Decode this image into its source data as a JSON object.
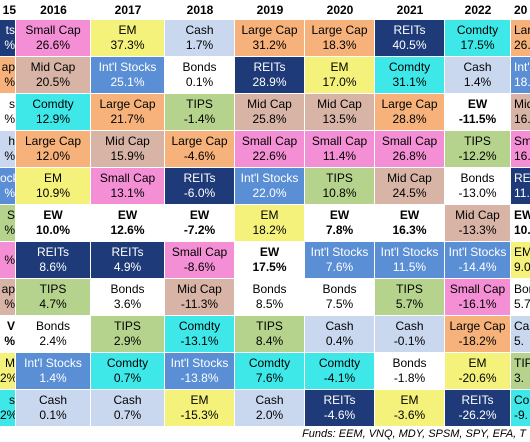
{
  "header": {
    "columns": [
      "15",
      "2016",
      "2017",
      "2018",
      "2019",
      "2020",
      "2021",
      "2022",
      "20"
    ]
  },
  "table": {
    "columns": [
      [
        {
          "label": "ts",
          "value": "%",
          "color": "#1f3a78"
        },
        {
          "label": "ap",
          "value": "%",
          "color": "#f6b27a"
        },
        {
          "label": "s",
          "value": "%",
          "color": "#ffffff"
        },
        {
          "label": "h",
          "value": "%",
          "color": "#c9d8ef"
        },
        {
          "label": "ocks",
          "value": "%",
          "color": "#5a8ed5"
        },
        {
          "label": "S",
          "value": "%",
          "color": "#b5d38c"
        },
        {
          "value": "%",
          "color": "#f48fd5"
        },
        {
          "label": "ap",
          "value": "%",
          "color": "#d8b4a6"
        },
        {
          "label": "V",
          "value": "%",
          "color": "#ffffff",
          "bold": true
        },
        {
          "label": "M",
          "value": "2%",
          "color": "#f5f27c"
        },
        {
          "label": "s",
          "value": "2%",
          "color": "#3ee8e8"
        }
      ],
      [
        {
          "label": "Small Cap",
          "value": "26.6%",
          "color": "#f48fd5"
        },
        {
          "label": "Mid Cap",
          "value": "20.5%",
          "color": "#d8b4a6"
        },
        {
          "label": "Comdty",
          "value": "12.9%",
          "color": "#3ee8e8"
        },
        {
          "label": "Large Cap",
          "value": "12.0%",
          "color": "#f6b27a"
        },
        {
          "label": "EM",
          "value": "10.9%",
          "color": "#f5f27c"
        },
        {
          "label": "EW",
          "value": "10.0%",
          "color": "#ffffff",
          "bold": true
        },
        {
          "label": "REITs",
          "value": "8.6%",
          "color": "#1f3a78"
        },
        {
          "label": "TIPS",
          "value": "4.7%",
          "color": "#b5d38c"
        },
        {
          "label": "Bonds",
          "value": "2.4%",
          "color": "#ffffff"
        },
        {
          "label": "Int'l Stocks",
          "value": "1.4%",
          "color": "#5a8ed5"
        },
        {
          "label": "Cash",
          "value": "0.1%",
          "color": "#c9d8ef"
        }
      ],
      [
        {
          "label": "EM",
          "value": "37.3%",
          "color": "#f5f27c"
        },
        {
          "label": "Int'l Stocks",
          "value": "25.1%",
          "color": "#5a8ed5"
        },
        {
          "label": "Large Cap",
          "value": "21.7%",
          "color": "#f6b27a"
        },
        {
          "label": "Mid Cap",
          "value": "15.9%",
          "color": "#d8b4a6"
        },
        {
          "label": "Small Cap",
          "value": "13.1%",
          "color": "#f48fd5"
        },
        {
          "label": "EW",
          "value": "12.6%",
          "color": "#ffffff",
          "bold": true
        },
        {
          "label": "REITs",
          "value": "4.9%",
          "color": "#1f3a78"
        },
        {
          "label": "Bonds",
          "value": "3.6%",
          "color": "#ffffff"
        },
        {
          "label": "TIPS",
          "value": "2.9%",
          "color": "#b5d38c"
        },
        {
          "label": "Comdty",
          "value": "0.7%",
          "color": "#3ee8e8"
        },
        {
          "label": "Cash",
          "value": "0.7%",
          "color": "#c9d8ef"
        }
      ],
      [
        {
          "label": "Cash",
          "value": "1.7%",
          "color": "#c9d8ef"
        },
        {
          "label": "Bonds",
          "value": "0.1%",
          "color": "#ffffff"
        },
        {
          "label": "TIPS",
          "value": "-1.4%",
          "color": "#b5d38c"
        },
        {
          "label": "Large Cap",
          "value": "-4.6%",
          "color": "#f6b27a"
        },
        {
          "label": "REITs",
          "value": "-6.0%",
          "color": "#1f3a78"
        },
        {
          "label": "EW",
          "value": "-7.2%",
          "color": "#ffffff",
          "bold": true
        },
        {
          "label": "Small Cap",
          "value": "-8.6%",
          "color": "#f48fd5"
        },
        {
          "label": "Mid Cap",
          "value": "-11.3%",
          "color": "#d8b4a6"
        },
        {
          "label": "Comdty",
          "value": "-13.1%",
          "color": "#3ee8e8"
        },
        {
          "label": "Int'l Stocks",
          "value": "-13.8%",
          "color": "#5a8ed5"
        },
        {
          "label": "EM",
          "value": "-15.3%",
          "color": "#f5f27c"
        }
      ],
      [
        {
          "label": "Large Cap",
          "value": "31.2%",
          "color": "#f6b27a"
        },
        {
          "label": "REITs",
          "value": "28.9%",
          "color": "#1f3a78"
        },
        {
          "label": "Mid Cap",
          "value": "25.8%",
          "color": "#d8b4a6"
        },
        {
          "label": "Small Cap",
          "value": "22.6%",
          "color": "#f48fd5"
        },
        {
          "label": "Int'l Stocks",
          "value": "22.0%",
          "color": "#5a8ed5"
        },
        {
          "label": "EM",
          "value": "18.2%",
          "color": "#f5f27c"
        },
        {
          "label": "EW",
          "value": "17.5%",
          "color": "#ffffff",
          "bold": true
        },
        {
          "label": "Bonds",
          "value": "8.5%",
          "color": "#ffffff"
        },
        {
          "label": "TIPS",
          "value": "8.4%",
          "color": "#b5d38c"
        },
        {
          "label": "Comdty",
          "value": "7.6%",
          "color": "#3ee8e8"
        },
        {
          "label": "Cash",
          "value": "2.0%",
          "color": "#c9d8ef"
        }
      ],
      [
        {
          "label": "Large Cap",
          "value": "18.3%",
          "color": "#f6b27a"
        },
        {
          "label": "EM",
          "value": "17.0%",
          "color": "#f5f27c"
        },
        {
          "label": "Mid Cap",
          "value": "13.5%",
          "color": "#d8b4a6"
        },
        {
          "label": "Small Cap",
          "value": "11.4%",
          "color": "#f48fd5"
        },
        {
          "label": "TIPS",
          "value": "10.8%",
          "color": "#b5d38c"
        },
        {
          "label": "EW",
          "value": "7.8%",
          "color": "#ffffff",
          "bold": true
        },
        {
          "label": "Int'l Stocks",
          "value": "7.6%",
          "color": "#5a8ed5"
        },
        {
          "label": "Bonds",
          "value": "7.5%",
          "color": "#ffffff"
        },
        {
          "label": "Cash",
          "value": "0.4%",
          "color": "#c9d8ef"
        },
        {
          "label": "Comdty",
          "value": "-4.1%",
          "color": "#3ee8e8"
        },
        {
          "label": "REITs",
          "value": "-4.6%",
          "color": "#1f3a78"
        }
      ],
      [
        {
          "label": "REITs",
          "value": "40.5%",
          "color": "#1f3a78"
        },
        {
          "label": "Comdty",
          "value": "31.1%",
          "color": "#3ee8e8"
        },
        {
          "label": "Large Cap",
          "value": "28.8%",
          "color": "#f6b27a"
        },
        {
          "label": "Small Cap",
          "value": "26.8%",
          "color": "#f48fd5"
        },
        {
          "label": "Mid Cap",
          "value": "24.5%",
          "color": "#d8b4a6"
        },
        {
          "label": "EW",
          "value": "16.3%",
          "color": "#ffffff",
          "bold": true
        },
        {
          "label": "Int'l Stocks",
          "value": "11.5%",
          "color": "#5a8ed5"
        },
        {
          "label": "TIPS",
          "value": "5.7%",
          "color": "#b5d38c"
        },
        {
          "label": "Cash",
          "value": "-0.1%",
          "color": "#c9d8ef"
        },
        {
          "label": "Bonds",
          "value": "-1.8%",
          "color": "#ffffff"
        },
        {
          "label": "EM",
          "value": "-3.6%",
          "color": "#f5f27c"
        }
      ],
      [
        {
          "label": "Comdty",
          "value": "17.5%",
          "color": "#3ee8e8"
        },
        {
          "label": "Cash",
          "value": "1.4%",
          "color": "#c9d8ef"
        },
        {
          "label": "EW",
          "value": "-11.5%",
          "color": "#ffffff",
          "bold": true
        },
        {
          "label": "TIPS",
          "value": "-12.2%",
          "color": "#b5d38c"
        },
        {
          "label": "Bonds",
          "value": "-13.0%",
          "color": "#ffffff"
        },
        {
          "label": "Mid Cap",
          "value": "-13.3%",
          "color": "#d8b4a6"
        },
        {
          "label": "Int'l Stocks",
          "value": "-14.4%",
          "color": "#5a8ed5"
        },
        {
          "label": "Small Cap",
          "value": "-16.1%",
          "color": "#f48fd5"
        },
        {
          "label": "Large Cap",
          "value": "-18.2%",
          "color": "#f6b27a"
        },
        {
          "label": "EM",
          "value": "-20.6%",
          "color": "#f5f27c"
        },
        {
          "label": "REITs",
          "value": "-26.2%",
          "color": "#1f3a78"
        }
      ],
      [
        {
          "label": "Large",
          "value": "26.",
          "color": "#f6b27a"
        },
        {
          "label": "Int'l St",
          "value": "18.",
          "color": "#5a8ed5"
        },
        {
          "label": "Mid C",
          "value": "16.",
          "color": "#d8b4a6"
        },
        {
          "label": "Small",
          "value": "16.",
          "color": "#f48fd5"
        },
        {
          "label": "REIT",
          "value": "11.",
          "color": "#1f3a78"
        },
        {
          "label": "EW",
          "value": "10.",
          "color": "#ffffff",
          "bold": true
        },
        {
          "label": "EM",
          "value": "9.0",
          "color": "#f5f27c"
        },
        {
          "label": "Bonds",
          "value": "5.7",
          "color": "#ffffff"
        },
        {
          "label": "Cash",
          "value": "5.",
          "color": "#c9d8ef"
        },
        {
          "label": "TIP",
          "value": "3.",
          "color": "#b5d38c"
        },
        {
          "label": "Con",
          "value": "-9.",
          "color": "#3ee8e8"
        }
      ]
    ]
  },
  "footnote": "Funds: EEM, VNQ, MDY, SPSM, SPY, EFA, T"
}
